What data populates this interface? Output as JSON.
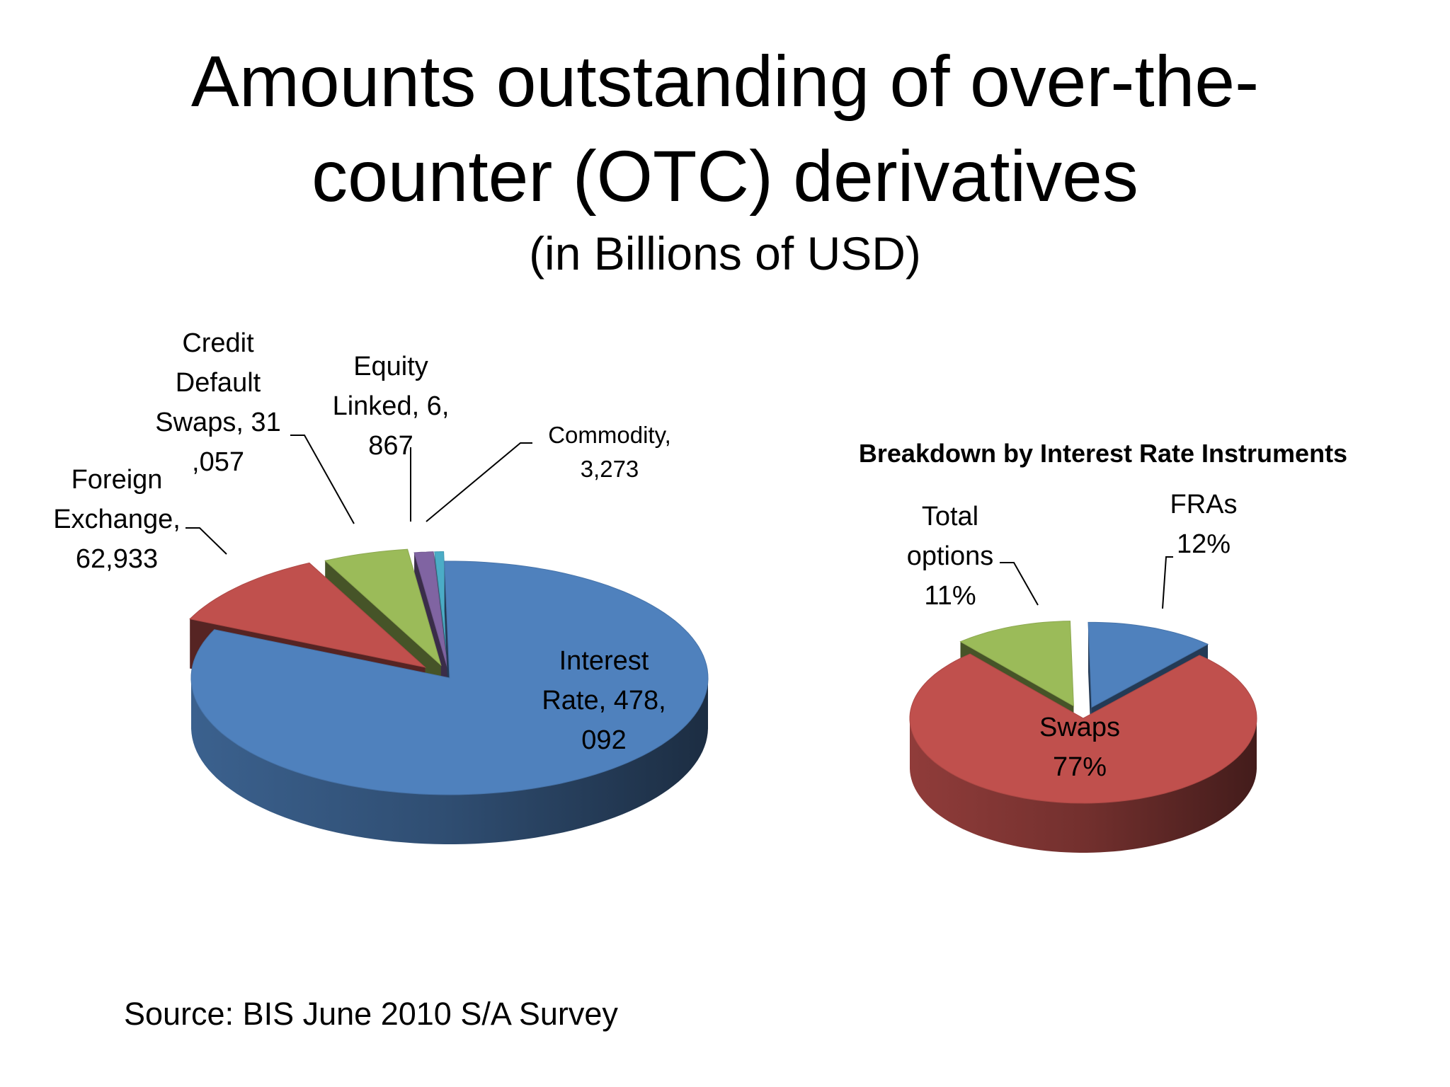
{
  "slide": {
    "title_line1": "Amounts outstanding of over-the-",
    "title_line2": "counter (OTC) derivatives",
    "subtitle": "(in Billions of USD)",
    "source": "Source: BIS June 2010 S/A Survey"
  },
  "chart_data": [
    {
      "type": "pie",
      "style": "3d-exploded",
      "title": "",
      "unit": "Billions of USD",
      "categories": [
        "Interest Rate",
        "Foreign Exchange",
        "Credit Default Swaps",
        "Equity Linked",
        "Commodity"
      ],
      "values": [
        478092,
        62933,
        31057,
        6867,
        3273
      ],
      "data_labels": [
        [
          "Interest",
          "Rate,  478,",
          "092"
        ],
        [
          "Foreign",
          "Exchange,",
          "62,933"
        ],
        [
          "Credit",
          "Default",
          "Swaps,  31",
          ",057"
        ],
        [
          "Equity",
          "Linked,  6,",
          "867"
        ],
        [
          "Commodity,",
          "3,273"
        ]
      ],
      "colors": [
        "#4f81bd",
        "#c0504d",
        "#9bbb59",
        "#8064a2",
        "#4bacc6"
      ]
    },
    {
      "type": "pie",
      "style": "3d-exploded",
      "title": "Breakdown by Interest Rate Instruments",
      "categories": [
        "FRAs",
        "Swaps",
        "Total options"
      ],
      "values": [
        12,
        77,
        11
      ],
      "unit": "%",
      "data_labels": [
        [
          "FRAs",
          "12%"
        ],
        [
          "Swaps",
          "77%"
        ],
        [
          "Total",
          "options",
          "11%"
        ]
      ],
      "colors": [
        "#4f81bd",
        "#c0504d",
        "#9bbb59"
      ]
    }
  ]
}
